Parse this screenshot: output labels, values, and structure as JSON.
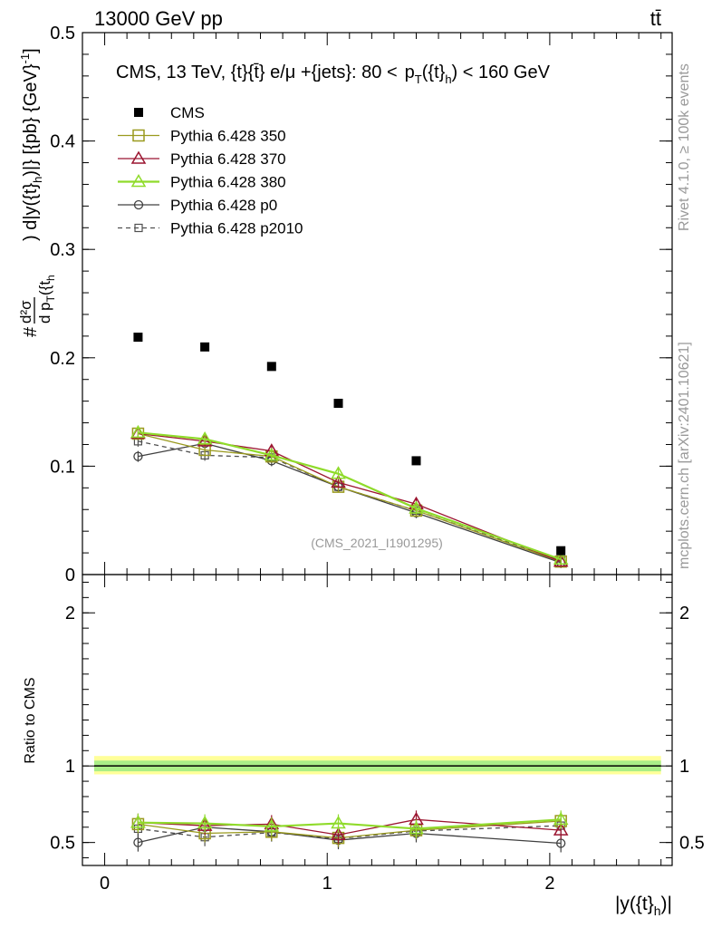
{
  "header": {
    "left": "13000 GeV pp",
    "right": "tt̄"
  },
  "side_labels": {
    "rivet": "Rivet 4.1.0, ≥ 100k events",
    "site": "mcplots.cern.ch [arXiv:2401.10621]"
  },
  "chart_data": [
    {
      "type": "scatter",
      "panel": "main",
      "title": "CMS, 13 TeV, {t}{t̄} e/μ +{jets}: 80 < p_T({t}_h) < 160 GeV",
      "title_parts": {
        "prefix": "CMS, 13 TeV, {t}{t̄} e/μ +{jets}: 80 <",
        "pt": "p",
        "pt_sub": "T",
        "arg": "({t}",
        "arg_sub": "h",
        "suffix": ") < 160 GeV"
      },
      "ylabel": "#d²σ / dp_T({t}_h) d|y({t}_h)| [{pb} {GeV}⁻¹]",
      "ylabel_parts": {
        "hash": "#",
        "num": "d²σ",
        "den": "d p",
        "den_sub": "T",
        "den_tail": "({t",
        "den_sub2": "h",
        "tail1": ") d|y({t}",
        "tail_sub": "h",
        "tail2": ")|} [{pb} {GeV}",
        "sup": "-1",
        "tail3": "]"
      },
      "watermark": "(CMS_2021_I1901295)",
      "xlim": [
        -0.1,
        2.55
      ],
      "ylim": [
        0,
        0.5
      ],
      "yticks": [
        {
          "v": 0,
          "label": "0"
        },
        {
          "v": 0.1,
          "label": "0.1"
        },
        {
          "v": 0.2,
          "label": "0.2"
        },
        {
          "v": 0.3,
          "label": "0.3"
        },
        {
          "v": 0.4,
          "label": "0.4"
        },
        {
          "v": 0.5,
          "label": "0.5"
        }
      ],
      "x": [
        0.15,
        0.45,
        0.75,
        1.05,
        1.4,
        2.05
      ],
      "series": [
        {
          "name": "CMS",
          "color": "#000000",
          "marker": "filled-square",
          "line": "none",
          "values": [
            0.219,
            0.21,
            0.192,
            0.158,
            0.105,
            0.022
          ]
        },
        {
          "name": "Pythia 6.428 350",
          "color": "#9a9a1e",
          "marker": "open-square",
          "line": "solid",
          "values": [
            0.13,
            0.115,
            0.109,
            0.081,
            0.059,
            0.012
          ]
        },
        {
          "name": "Pythia 6.428 370",
          "color": "#9b1530",
          "marker": "open-triangle",
          "line": "solid",
          "values": [
            0.13,
            0.123,
            0.114,
            0.085,
            0.065,
            0.012
          ]
        },
        {
          "name": "Pythia 6.428 380",
          "color": "#8fdb2a",
          "marker": "open-triangle",
          "line": "solid",
          "values": [
            0.131,
            0.125,
            0.11,
            0.093,
            0.061,
            0.014
          ]
        },
        {
          "name": "Pythia 6.428 p0",
          "color": "#404040",
          "marker": "open-circle",
          "line": "solid",
          "values": [
            0.109,
            0.121,
            0.105,
            0.081,
            0.057,
            0.011
          ]
        },
        {
          "name": "Pythia 6.428 p2010",
          "color": "#505050",
          "marker": "open-square-small",
          "line": "dashed",
          "values": [
            0.123,
            0.11,
            0.108,
            0.081,
            0.059,
            0.013
          ]
        }
      ]
    },
    {
      "type": "line",
      "panel": "ratio",
      "ylabel": "Ratio to CMS",
      "xlabel": "|y({t}_h)|",
      "xlabel_parts": {
        "main": "|y({t}",
        "sub": "h",
        "tail": ")|"
      },
      "xlim": [
        -0.1,
        2.55
      ],
      "ylim": [
        0.35,
        2.25
      ],
      "xticks": [
        {
          "v": 0,
          "label": "0"
        },
        {
          "v": 1,
          "label": "1"
        },
        {
          "v": 2,
          "label": "2"
        }
      ],
      "yticks": [
        {
          "v": 0.5,
          "label": "0.5"
        },
        {
          "v": 1,
          "label": "1"
        },
        {
          "v": 2,
          "label": "2"
        }
      ],
      "band": {
        "outer": [
          0.945,
          1.065
        ],
        "inner": [
          0.965,
          1.035
        ],
        "outer_color": "#ffff99",
        "inner_color": "#aaee88"
      },
      "x": [
        0.15,
        0.45,
        0.75,
        1.05,
        1.4,
        2.05
      ],
      "series": [
        {
          "name": "Pythia 6.428 350",
          "values": [
            0.62,
            0.56,
            0.57,
            0.53,
            0.58,
            0.64
          ]
        },
        {
          "name": "Pythia 6.428 370",
          "values": [
            0.63,
            0.61,
            0.62,
            0.55,
            0.65,
            0.58
          ]
        },
        {
          "name": "Pythia 6.428 380",
          "values": [
            0.63,
            0.625,
            0.605,
            0.625,
            0.59,
            0.65
          ]
        },
        {
          "name": "Pythia 6.428 p0",
          "values": [
            0.5,
            0.6,
            0.57,
            0.515,
            0.56,
            0.495
          ]
        },
        {
          "name": "Pythia 6.428 p2010",
          "values": [
            0.59,
            0.535,
            0.565,
            0.525,
            0.575,
            0.61
          ]
        }
      ]
    }
  ]
}
